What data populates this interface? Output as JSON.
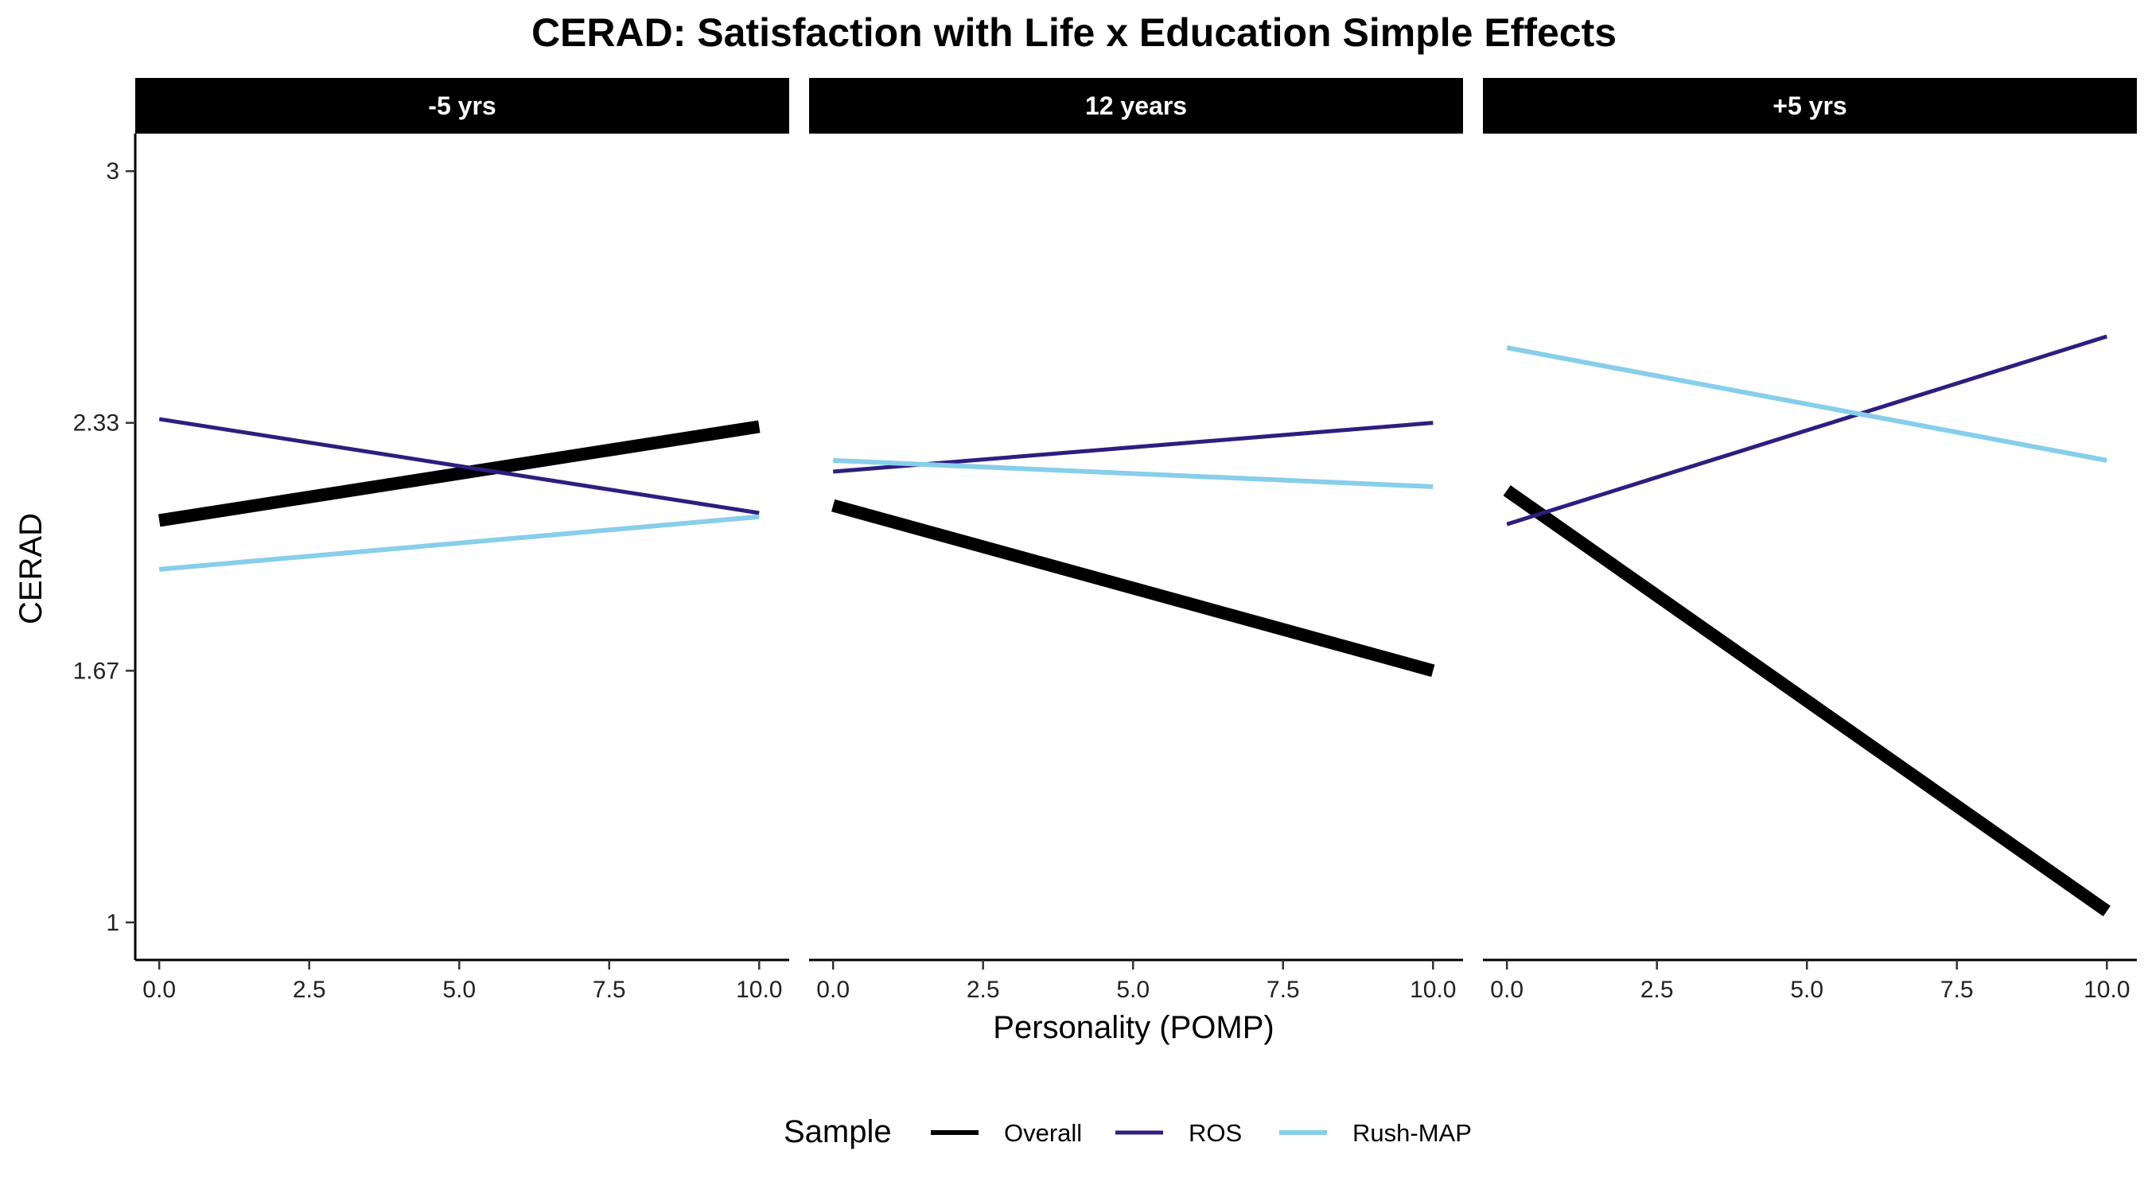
{
  "chart_data": {
    "type": "line",
    "title": "CERAD: Satisfaction with Life x Education Simple Effects",
    "xlabel": "Personality (POMP)",
    "ylabel": "CERAD",
    "xlim": [
      -0.4,
      10.5
    ],
    "ylim": [
      0.9,
      3.1
    ],
    "x_ticks": [
      0,
      2.5,
      5,
      7.5,
      10
    ],
    "x_tick_labels": [
      "0.0",
      "2.5",
      "5.0",
      "7.5",
      "10.0"
    ],
    "y_ticks": [
      1,
      1.67,
      2.33,
      3
    ],
    "y_tick_labels": [
      "1",
      "1.67",
      "2.33",
      "3"
    ],
    "grid": false,
    "legend": {
      "title": "Sample",
      "position": "bottom",
      "entries": [
        "Overall",
        "ROS",
        "Rush-MAP"
      ]
    },
    "series_styles": {
      "Overall": {
        "color": "#000000",
        "width": 16
      },
      "ROS": {
        "color": "#2c1f7e",
        "width": 5
      },
      "Rush-MAP": {
        "color": "#87ceeb",
        "width": 6
      }
    },
    "panels": [
      {
        "label": "-5 yrs",
        "series": [
          {
            "name": "Overall",
            "x": [
              0,
              10
            ],
            "y": [
              2.07,
              2.32
            ]
          },
          {
            "name": "ROS",
            "x": [
              0,
              10
            ],
            "y": [
              2.34,
              2.09
            ]
          },
          {
            "name": "Rush-MAP",
            "x": [
              0,
              10
            ],
            "y": [
              1.94,
              2.08
            ]
          }
        ]
      },
      {
        "label": "12 years",
        "series": [
          {
            "name": "Overall",
            "x": [
              0,
              10
            ],
            "y": [
              2.11,
              1.67
            ]
          },
          {
            "name": "ROS",
            "x": [
              0,
              10
            ],
            "y": [
              2.2,
              2.33
            ]
          },
          {
            "name": "Rush-MAP",
            "x": [
              0,
              10
            ],
            "y": [
              2.23,
              2.16
            ]
          }
        ]
      },
      {
        "label": "+5 yrs",
        "series": [
          {
            "name": "Overall",
            "x": [
              0,
              10
            ],
            "y": [
              2.15,
              1.03
            ]
          },
          {
            "name": "ROS",
            "x": [
              0,
              10
            ],
            "y": [
              2.06,
              2.56
            ]
          },
          {
            "name": "Rush-MAP",
            "x": [
              0,
              10
            ],
            "y": [
              2.53,
              2.23
            ]
          }
        ]
      }
    ]
  }
}
